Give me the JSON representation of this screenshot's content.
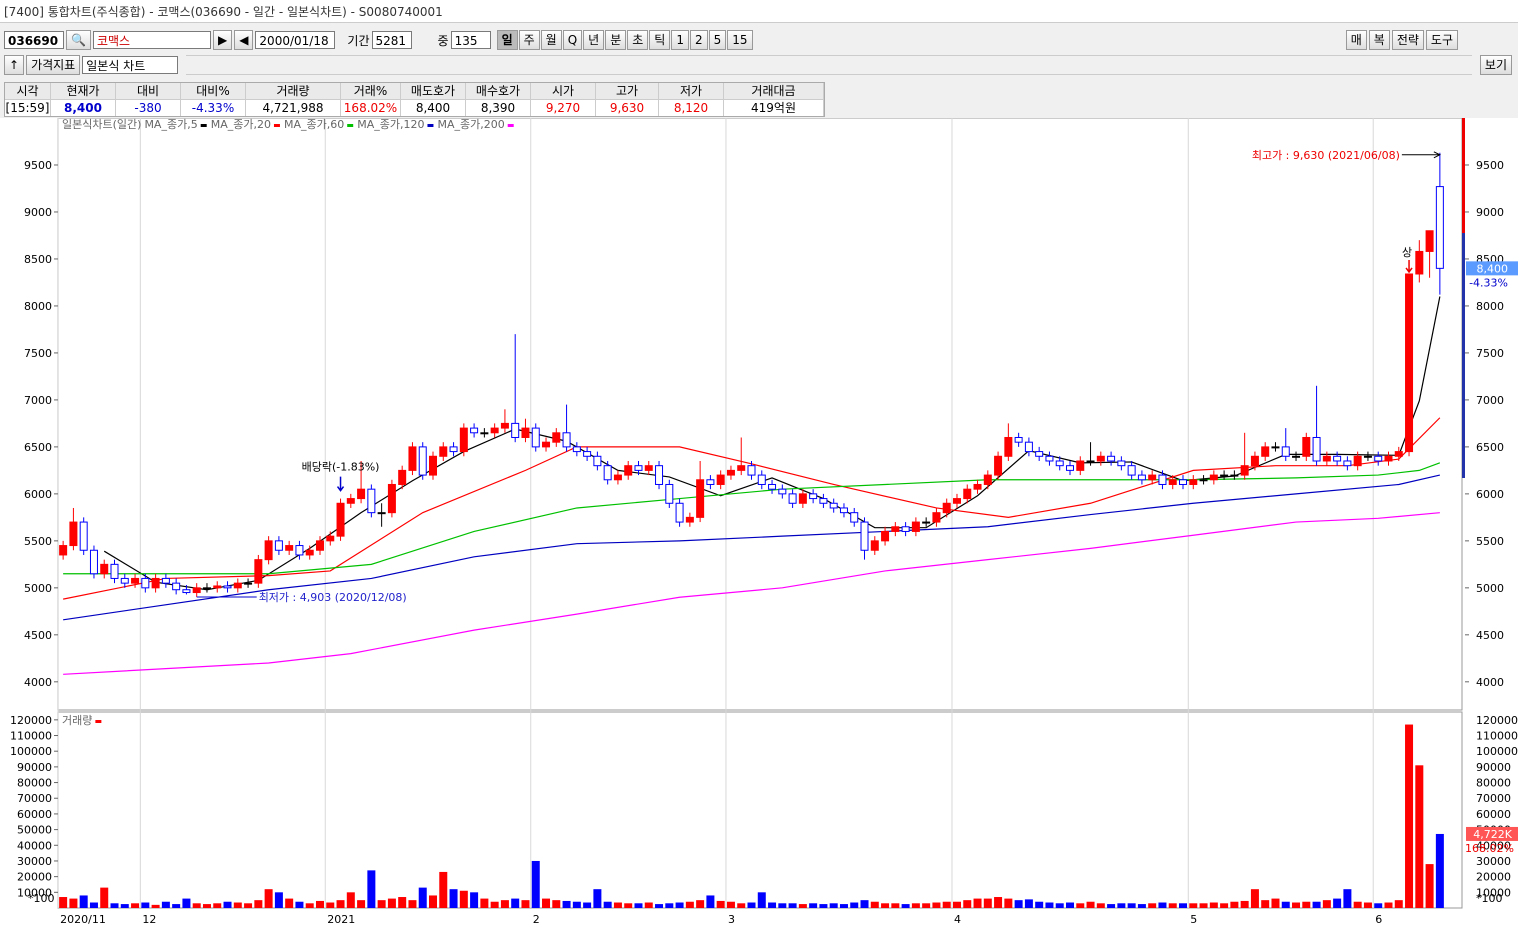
{
  "window": {
    "title": "[7400] 통합차트(주식종합) - 코맥스(036690 - 일간 - 일본식차트) - S0080740001"
  },
  "toolbar": {
    "code": "036690",
    "name": "코맥스",
    "date": "2000/01/18",
    "period_label": "기간",
    "period": "5281",
    "count_label": "중",
    "count": "135",
    "intervals": [
      "일",
      "주",
      "월",
      "Q",
      "년",
      "분",
      "초",
      "틱",
      "1",
      "2",
      "5",
      "15"
    ],
    "right_buttons": [
      "매",
      "복",
      "전략",
      "도구"
    ],
    "indicator_button": "가격지표",
    "chart_style": "일본식 차트",
    "view_button": "보기"
  },
  "quote": {
    "headers": [
      "시각",
      "현재가",
      "대비",
      "대비%",
      "거래량",
      "거래%",
      "매도호가",
      "매수호가",
      "시가",
      "고가",
      "저가",
      "거래대금"
    ],
    "values": [
      "[15:59]",
      "8,400",
      "-380",
      "-4.33%",
      "4,721,988",
      "168.02%",
      "8,400",
      "8,390",
      "9,270",
      "9,630",
      "8,120",
      "419억원"
    ]
  },
  "chart_data": [
    {
      "type": "candlestick",
      "legend_title": "일본식차트(일간)",
      "up_color": "#ff0000",
      "down_color": "#0000ff",
      "open": [
        5350,
        5450,
        5700,
        5400,
        5150,
        5250,
        5100,
        5050,
        5100,
        5000,
        5100,
        5050,
        4980,
        4950,
        5000,
        5000,
        5020,
        5000,
        5050,
        5050,
        5300,
        5500,
        5400,
        5450,
        5350,
        5400,
        5500,
        5550,
        5900,
        5950,
        6050,
        5800,
        5800,
        6100,
        6250,
        6500,
        6200,
        6400,
        6500,
        6450,
        6700,
        6650,
        6650,
        6700,
        6750,
        6600,
        6700,
        6500,
        6550,
        6650,
        6500,
        6450,
        6400,
        6300,
        6150,
        6200,
        6300,
        6250,
        6300,
        6100,
        5900,
        5700,
        5750,
        6150,
        6100,
        6200,
        6250,
        6300,
        6200,
        6100,
        6050,
        6000,
        5900,
        6000,
        5950,
        5900,
        5850,
        5800,
        5700,
        5400,
        5500,
        5600,
        5650,
        5600,
        5700,
        5700,
        5800,
        5900,
        5950,
        6050,
        6100,
        6200,
        6400,
        6600,
        6550,
        6450,
        6400,
        6350,
        6300,
        6250,
        6350,
        6350,
        6400,
        6350,
        6300,
        6200,
        6150,
        6200,
        6100,
        6150,
        6100,
        6150,
        6150,
        6200,
        6200,
        6200,
        6300,
        6400,
        6500,
        6500,
        6400,
        6400,
        6600,
        6350,
        6400,
        6350,
        6300,
        6400,
        6400,
        6350,
        6400,
        6450,
        8340,
        8580,
        9270
      ],
      "high": [
        5500,
        5850,
        5750,
        5450,
        5300,
        5300,
        5150,
        5150,
        5150,
        5150,
        5150,
        5100,
        5030,
        5050,
        5050,
        5070,
        5070,
        5100,
        5100,
        5350,
        5550,
        5550,
        5500,
        5500,
        5450,
        5550,
        5600,
        5950,
        6000,
        6350,
        6100,
        5900,
        6150,
        6300,
        6550,
        6550,
        6450,
        6550,
        6550,
        6750,
        6750,
        6700,
        6750,
        6900,
        7700,
        6800,
        6750,
        6600,
        6700,
        6950,
        6550,
        6500,
        6450,
        6350,
        6250,
        6350,
        6350,
        6350,
        6350,
        6150,
        5950,
        5800,
        6350,
        6200,
        6250,
        6300,
        6600,
        6350,
        6250,
        6150,
        6100,
        6050,
        6050,
        6050,
        6000,
        5950,
        5900,
        5850,
        5750,
        5550,
        5650,
        5700,
        5700,
        5750,
        5750,
        5850,
        5950,
        6000,
        6100,
        6150,
        6250,
        6450,
        6750,
        6650,
        6600,
        6500,
        6450,
        6400,
        6350,
        6400,
        6550,
        6450,
        6450,
        6400,
        6350,
        6250,
        6250,
        6250,
        6200,
        6200,
        6200,
        6200,
        6250,
        6250,
        6250,
        6650,
        6450,
        6550,
        6550,
        6700,
        6450,
        6650,
        7150,
        6450,
        6450,
        6400,
        6450,
        6450,
        6450,
        6450,
        6500,
        8340,
        8700,
        8800,
        9630
      ],
      "low": [
        5300,
        5400,
        5350,
        5100,
        5100,
        5050,
        5000,
        5000,
        4950,
        4950,
        5000,
        4930,
        4930,
        4903,
        4950,
        4950,
        4950,
        4950,
        5000,
        5000,
        5250,
        5350,
        5350,
        5300,
        5300,
        5350,
        5450,
        5500,
        5850,
        5900,
        5750,
        5650,
        5750,
        6050,
        6200,
        6150,
        6150,
        6350,
        6400,
        6400,
        6600,
        6600,
        6600,
        6650,
        6550,
        6550,
        6450,
        6450,
        6500,
        6450,
        6400,
        6350,
        6250,
        6100,
        6100,
        6150,
        6200,
        6200,
        6050,
        5850,
        5650,
        5650,
        5700,
        6050,
        6050,
        6150,
        6200,
        6150,
        6050,
        6000,
        5950,
        5850,
        5850,
        5900,
        5850,
        5800,
        5750,
        5650,
        5300,
        5350,
        5450,
        5550,
        5550,
        5550,
        5650,
        5650,
        5750,
        5850,
        5900,
        6000,
        6050,
        6150,
        6350,
        6500,
        6400,
        6350,
        6300,
        6250,
        6200,
        6200,
        6300,
        6300,
        6300,
        6250,
        6150,
        6100,
        6100,
        6050,
        6050,
        6050,
        6050,
        6100,
        6100,
        6150,
        6150,
        6150,
        6250,
        6350,
        6450,
        6350,
        6350,
        6350,
        6300,
        6300,
        6300,
        6250,
        6250,
        6350,
        6300,
        6300,
        6350,
        6400,
        8250,
        8300,
        8120
      ],
      "close": [
        5450,
        5700,
        5400,
        5150,
        5250,
        5100,
        5050,
        5100,
        5000,
        5100,
        5050,
        4980,
        4950,
        5000,
        5000,
        5020,
        5000,
        5050,
        5050,
        5300,
        5500,
        5400,
        5450,
        5350,
        5400,
        5500,
        5550,
        5900,
        5950,
        6050,
        5800,
        5800,
        6100,
        6250,
        6500,
        6200,
        6400,
        6500,
        6450,
        6700,
        6650,
        6650,
        6700,
        6750,
        6600,
        6700,
        6500,
        6550,
        6650,
        6500,
        6450,
        6400,
        6300,
        6150,
        6200,
        6300,
        6250,
        6300,
        6100,
        5900,
        5700,
        5750,
        6150,
        6100,
        6200,
        6250,
        6300,
        6200,
        6100,
        6050,
        6000,
        5900,
        6000,
        5950,
        5900,
        5850,
        5800,
        5700,
        5400,
        5500,
        5600,
        5650,
        5600,
        5700,
        5700,
        5800,
        5900,
        5950,
        6050,
        6100,
        6200,
        6400,
        6600,
        6550,
        6450,
        6400,
        6350,
        6300,
        6250,
        6350,
        6350,
        6400,
        6350,
        6300,
        6200,
        6150,
        6200,
        6100,
        6150,
        6100,
        6150,
        6150,
        6200,
        6200,
        6200,
        6300,
        6400,
        6500,
        6500,
        6400,
        6400,
        6600,
        6350,
        6400,
        6350,
        6300,
        6400,
        6400,
        6350,
        6400,
        6450,
        8340,
        8580,
        8800,
        8400
      ],
      "ylim": [
        3700,
        10000
      ],
      "yticks": [
        4000,
        4500,
        5000,
        5500,
        6000,
        6500,
        7000,
        7500,
        8000,
        8500,
        9000,
        9500
      ],
      "xlim": [
        0,
        135
      ],
      "xticks": [
        {
          "value": 0,
          "label": "2020/11"
        },
        {
          "value": 8,
          "label": "12"
        },
        {
          "value": 26,
          "label": "2021"
        },
        {
          "value": 46,
          "label": "2"
        },
        {
          "value": 65,
          "label": "3"
        },
        {
          "value": 87,
          "label": "4"
        },
        {
          "value": 110,
          "label": "5"
        },
        {
          "value": 128,
          "label": "6"
        }
      ],
      "moving_averages": [
        {
          "name": "MA_종가,5",
          "color": "#000000",
          "x": [
            4,
            9,
            14,
            19,
            24,
            29,
            34,
            39,
            44,
            49,
            54,
            59,
            64,
            69,
            74,
            79,
            84,
            89,
            94,
            99,
            104,
            109,
            114,
            119,
            124,
            130,
            132,
            134
          ],
          "values": [
            5390,
            5060,
            4980,
            5080,
            5420,
            5800,
            6140,
            6450,
            6690,
            6560,
            6250,
            6180,
            5980,
            6170,
            5950,
            5640,
            5640,
            5980,
            6460,
            6330,
            6340,
            6140,
            6190,
            6420,
            6420,
            6410,
            6990,
            8100
          ]
        },
        {
          "name": "MA_종가,20",
          "color": "#ff0000",
          "x": [
            0,
            10,
            20,
            26,
            35,
            45,
            50,
            60,
            67,
            75,
            85,
            92,
            100,
            110,
            118,
            125,
            130,
            134
          ],
          "values": [
            4880,
            5100,
            5130,
            5180,
            5800,
            6250,
            6500,
            6500,
            6320,
            6100,
            5850,
            5750,
            5900,
            6250,
            6300,
            6300,
            6370,
            6810
          ]
        },
        {
          "name": "MA_종가,60",
          "color": "#00c000",
          "x": [
            0,
            20,
            30,
            40,
            50,
            60,
            70,
            80,
            90,
            100,
            110,
            120,
            128,
            132,
            134
          ],
          "values": [
            5150,
            5150,
            5250,
            5600,
            5850,
            5950,
            6050,
            6100,
            6150,
            6150,
            6150,
            6170,
            6200,
            6250,
            6330
          ]
        },
        {
          "name": "MA_종가,120",
          "color": "#0000c0",
          "x": [
            0,
            20,
            30,
            40,
            50,
            60,
            70,
            80,
            90,
            100,
            110,
            120,
            130,
            134
          ],
          "values": [
            4660,
            4980,
            5100,
            5330,
            5470,
            5500,
            5550,
            5600,
            5650,
            5780,
            5900,
            6000,
            6100,
            6200
          ]
        },
        {
          "name": "MA_종가,200",
          "color": "#ff00ff",
          "x": [
            0,
            20,
            28,
            40,
            50,
            60,
            70,
            80,
            90,
            100,
            110,
            120,
            128,
            134
          ],
          "values": [
            4080,
            4200,
            4300,
            4550,
            4720,
            4900,
            5000,
            5180,
            5300,
            5420,
            5560,
            5700,
            5740,
            5800
          ]
        }
      ],
      "annotations": {
        "high": {
          "text": "최고가 : 9,630 (2021/06/08)",
          "at": 134
        },
        "low": {
          "text": "최저가 : 4,903 (2020/12/08)",
          "at": 13
        },
        "dividend": {
          "text": "배당락(-1.83%)",
          "at": 27
        },
        "limit_up": {
          "text": "상",
          "at": 131
        }
      },
      "current": {
        "value": 8400,
        "label": "8,400",
        "change": "-4.33%"
      }
    },
    {
      "type": "bar",
      "legend_title": "거래량",
      "unit_label": "*100",
      "up_color": "#ff0000",
      "down_color": "#0000ff",
      "values": [
        7000,
        6000,
        8000,
        3500,
        13000,
        3000,
        2500,
        3000,
        3500,
        2000,
        4000,
        2500,
        6000,
        3000,
        2500,
        3000,
        4000,
        3500,
        3000,
        5000,
        12000,
        10000,
        6000,
        4000,
        3000,
        4500,
        3500,
        5000,
        10000,
        5000,
        24000,
        5000,
        6000,
        7000,
        5000,
        13000,
        8000,
        23000,
        12000,
        11000,
        10000,
        6000,
        4000,
        5000,
        6000,
        5000,
        30000,
        6000,
        5000,
        4500,
        4000,
        3500,
        12000,
        4000,
        3500,
        3000,
        3000,
        3500,
        2500,
        3000,
        3500,
        4000,
        5000,
        8000,
        4500,
        4000,
        3000,
        3500,
        10000,
        3500,
        3000,
        3000,
        2500,
        3000,
        2500,
        3000,
        2500,
        3500,
        5000,
        4000,
        3000,
        3000,
        2500,
        3000,
        3000,
        3500,
        4000,
        4000,
        5000,
        6000,
        6000,
        7000,
        6000,
        5000,
        5500,
        4000,
        3500,
        3000,
        3500,
        3000,
        4000,
        3000,
        2500,
        3000,
        3000,
        2500,
        3000,
        3500,
        3000,
        3000,
        3000,
        3000,
        3500,
        3000,
        4000,
        4500,
        12000,
        5000,
        6000,
        4000,
        3500,
        4000,
        4000,
        5000,
        6000,
        12000,
        4000,
        3500,
        3000,
        3500,
        5000,
        117000,
        91000,
        28000,
        47220
      ],
      "ylim": [
        0,
        125000
      ],
      "yticks": [
        10000,
        20000,
        30000,
        40000,
        50000,
        60000,
        70000,
        80000,
        90000,
        100000,
        110000,
        120000
      ],
      "current": {
        "value": 47220,
        "label": "4,722K",
        "change": "168.02%"
      }
    }
  ]
}
